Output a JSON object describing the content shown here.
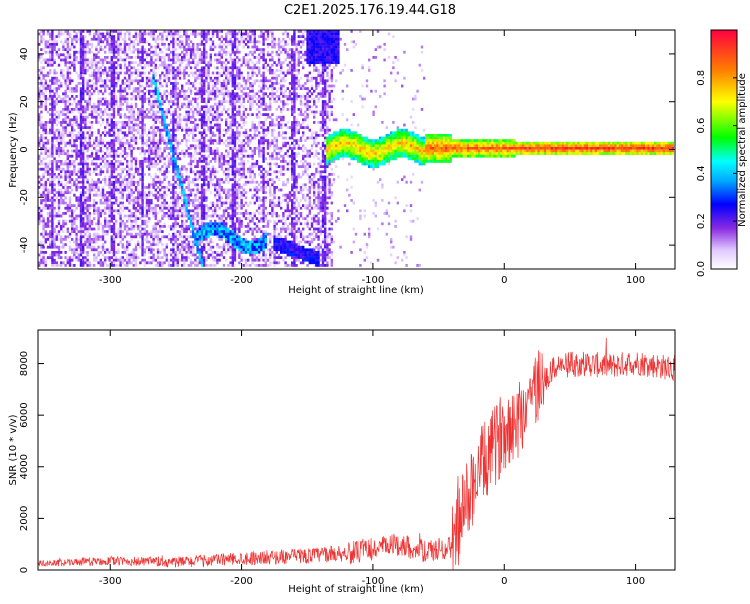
{
  "title": "C2E1.2025.176.19.44.G18",
  "chart_data": [
    {
      "type": "heatmap",
      "xlabel": "Height of straight line (km)",
      "ylabel": "Frequency (Hz)",
      "xlim": [
        -355,
        130
      ],
      "ylim": [
        -50,
        50
      ],
      "xticks": [
        -300,
        -200,
        -100,
        0,
        100
      ],
      "yticks": [
        -40,
        -20,
        0,
        20,
        40
      ],
      "colorbar": {
        "label": "Normalized spectral amplitude",
        "range": [
          0,
          1
        ],
        "ticks": [
          "0.0",
          "0.2",
          "0.4",
          "0.6",
          "0.8"
        ],
        "colormap": "rainbow (white-violet-blue-cyan-green-yellow-red)"
      },
      "features": [
        {
          "name": "main-tone",
          "x_range": [
            -130,
            130
          ],
          "freq": 0,
          "peak_amplitude": 0.95
        },
        {
          "name": "diagonal-track",
          "x_points": [
            [
              -265,
              25
            ],
            [
              -250,
              0
            ],
            [
              -240,
              -25
            ],
            [
              -232,
              -45
            ]
          ]
        },
        {
          "name": "low-band",
          "x_range": [
            -235,
            -180
          ],
          "freq": -38,
          "peak_amplitude": 0.45
        },
        {
          "name": "noise-region",
          "x_range": [
            -355,
            -130
          ]
        }
      ],
      "grid": false
    },
    {
      "type": "line",
      "xlabel": "Height of straight line (km)",
      "ylabel": "SNR (10 * v/v)",
      "xlim": [
        -355,
        130
      ],
      "ylim": [
        0,
        9300
      ],
      "xticks": [
        -300,
        -200,
        -100,
        0,
        100
      ],
      "yticks": [
        0,
        2000,
        4000,
        6000,
        8000
      ],
      "color": "#ee3333",
      "series_profile": [
        [
          -355,
          250
        ],
        [
          -300,
          350
        ],
        [
          -250,
          300
        ],
        [
          -200,
          450
        ],
        [
          -150,
          550
        ],
        [
          -110,
          700
        ],
        [
          -80,
          1000
        ],
        [
          -60,
          700
        ],
        [
          -40,
          900
        ],
        [
          -30,
          2500
        ],
        [
          -20,
          3800
        ],
        [
          -10,
          4500
        ],
        [
          0,
          5500
        ],
        [
          10,
          5800
        ],
        [
          20,
          6800
        ],
        [
          40,
          7900
        ],
        [
          60,
          8000
        ],
        [
          80,
          7900
        ],
        [
          100,
          8050
        ],
        [
          130,
          7800
        ]
      ],
      "grid": false
    }
  ]
}
